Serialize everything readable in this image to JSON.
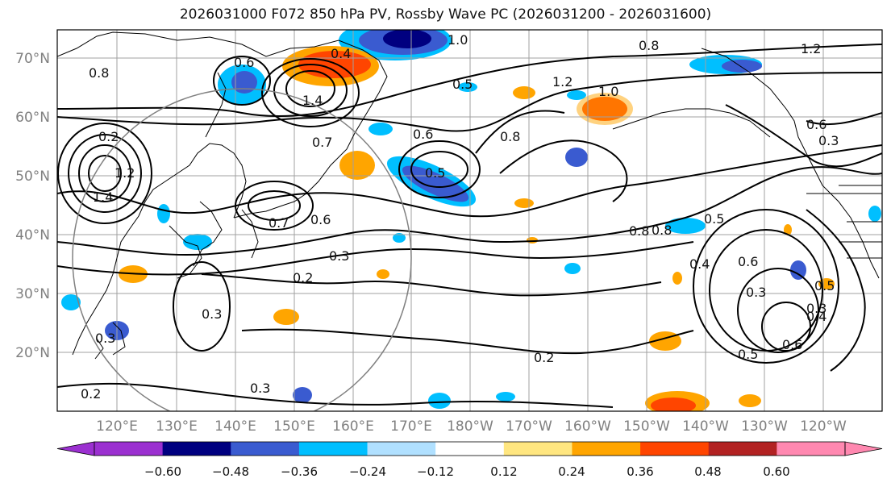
{
  "title": "2026031000 F072 850 hPa PV, Rossby Wave PC (2026031200 - 2026031600)",
  "map": {
    "lat_labels": [
      "70°N",
      "60°N",
      "50°N",
      "40°N",
      "30°N",
      "20°N"
    ],
    "lon_labels": [
      "120°E",
      "130°E",
      "140°E",
      "150°E",
      "160°E",
      "170°E",
      "180°W",
      "170°W",
      "160°W",
      "150°W",
      "140°W",
      "130°W",
      "120°W"
    ],
    "contour_labels": [
      "1.0",
      "0.8",
      "1.2",
      "0.6",
      "0.8",
      "0.4",
      "0.5",
      "1.4",
      "1.0",
      "1.2",
      "0.8",
      "0.6",
      "0.7",
      "1.4",
      "1.2",
      "0.6",
      "0.3",
      "0.5",
      "0.8",
      "0.7",
      "0.6",
      "0.3",
      "0.2",
      "0.3",
      "0.2",
      "0.3",
      "0.2",
      "0.8",
      "0.5",
      "0.4",
      "0.6",
      "0.3",
      "0.5",
      "0.3",
      "0.4",
      "0.6",
      "0.5",
      "0.3",
      "0.2"
    ],
    "colors": {
      "land_line": "#000000",
      "grid": "#a0a0a0",
      "contour": "#000000",
      "circle": "#808080"
    }
  },
  "colorbar": {
    "bins": [
      "#9b30d0",
      "#000080",
      "#3a5bd0",
      "#00bfff",
      "#b0e0ff",
      "#ffffff",
      "#ffe680",
      "#ffa500",
      "#ff4500",
      "#b22222",
      "#ff88b0"
    ],
    "tick_labels": [
      "−0.60",
      "−0.48",
      "−0.36",
      "−0.24",
      "−0.12",
      "0.12",
      "0.24",
      "0.36",
      "0.48",
      "0.60"
    ]
  }
}
